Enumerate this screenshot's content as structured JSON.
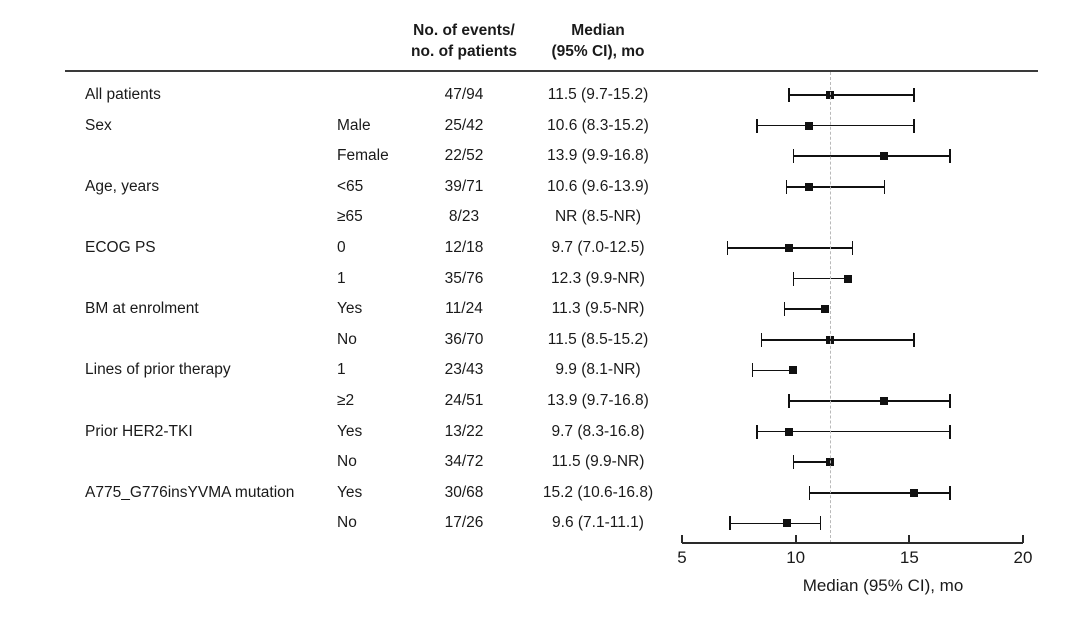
{
  "columns": {
    "events_header": "No. of events/\nno. of patients",
    "median_header": "Median\n(95% CI), mo"
  },
  "chart_data": {
    "type": "scatter",
    "variant": "forest-plot",
    "title": "",
    "xlabel": "Median (95% CI), mo",
    "xlim": [
      5,
      20
    ],
    "xticks": [
      5,
      10,
      15,
      20
    ],
    "reference_line": 11.5,
    "grid": false,
    "rows": [
      {
        "group": "All patients",
        "level": "",
        "events": "47/94",
        "median_text": "11.5 (9.7-15.2)",
        "median": 11.5,
        "lower": 9.7,
        "upper": 15.2,
        "upper_nr": false
      },
      {
        "group": "Sex",
        "level": "Male",
        "events": "25/42",
        "median_text": "10.6 (8.3-15.2)",
        "median": 10.6,
        "lower": 8.3,
        "upper": 15.2,
        "upper_nr": false
      },
      {
        "group": "",
        "level": "Female",
        "events": "22/52",
        "median_text": "13.9 (9.9-16.8)",
        "median": 13.9,
        "lower": 9.9,
        "upper": 16.8,
        "upper_nr": false
      },
      {
        "group": "Age, years",
        "level": "<65",
        "events": "39/71",
        "median_text": "10.6 (9.6-13.9)",
        "median": 10.6,
        "lower": 9.6,
        "upper": 13.9,
        "upper_nr": false
      },
      {
        "group": "",
        "level": "≥65",
        "events": "8/23",
        "median_text": "NR (8.5-NR)",
        "median": null,
        "lower": 8.5,
        "upper": null,
        "upper_nr": true
      },
      {
        "group": "ECOG PS",
        "level": "0",
        "events": "12/18",
        "median_text": "9.7 (7.0-12.5)",
        "median": 9.7,
        "lower": 7.0,
        "upper": 12.5,
        "upper_nr": false
      },
      {
        "group": "",
        "level": "1",
        "events": "35/76",
        "median_text": "12.3 (9.9-NR)",
        "median": 12.3,
        "lower": 9.9,
        "upper": null,
        "upper_nr": true
      },
      {
        "group": "BM at enrolment",
        "level": "Yes",
        "events": "11/24",
        "median_text": "11.3 (9.5-NR)",
        "median": 11.3,
        "lower": 9.5,
        "upper": null,
        "upper_nr": true
      },
      {
        "group": "",
        "level": "No",
        "events": "36/70",
        "median_text": "11.5 (8.5-15.2)",
        "median": 11.5,
        "lower": 8.5,
        "upper": 15.2,
        "upper_nr": false
      },
      {
        "group": "Lines of prior therapy",
        "level": "1",
        "events": "23/43",
        "median_text": "9.9 (8.1-NR)",
        "median": 9.9,
        "lower": 8.1,
        "upper": null,
        "upper_nr": true
      },
      {
        "group": "",
        "level": "≥2",
        "events": "24/51",
        "median_text": "13.9 (9.7-16.8)",
        "median": 13.9,
        "lower": 9.7,
        "upper": 16.8,
        "upper_nr": false
      },
      {
        "group": "Prior HER2-TKI",
        "level": "Yes",
        "events": "13/22",
        "median_text": "9.7 (8.3-16.8)",
        "median": 9.7,
        "lower": 8.3,
        "upper": 16.8,
        "upper_nr": false
      },
      {
        "group": "",
        "level": "No",
        "events": "34/72",
        "median_text": "11.5 (9.9-NR)",
        "median": 11.5,
        "lower": 9.9,
        "upper": null,
        "upper_nr": true
      },
      {
        "group": "A775_G776insYVMA mutation",
        "level": "Yes",
        "events": "30/68",
        "median_text": "15.2 (10.6-16.8)",
        "median": 15.2,
        "lower": 10.6,
        "upper": 16.8,
        "upper_nr": false
      },
      {
        "group": "",
        "level": "No",
        "events": "17/26",
        "median_text": "9.6 (7.1-11.1)",
        "median": 9.6,
        "lower": 7.1,
        "upper": 11.1,
        "upper_nr": false
      }
    ]
  },
  "colors": {
    "text": "#1a1a1a",
    "line": "#111111",
    "rule": "#3a3a3a",
    "reference": "#b9b9b9",
    "background": "#ffffff"
  }
}
